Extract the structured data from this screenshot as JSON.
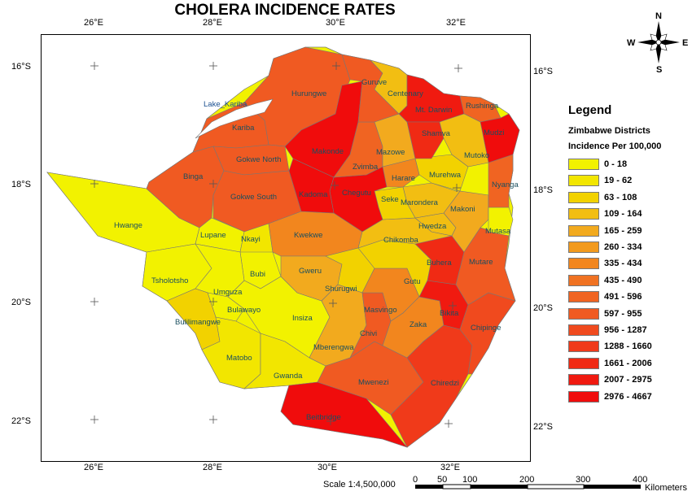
{
  "title": "CHOLERA INCIDENCE RATES",
  "compass": {
    "n": "N",
    "s": "S",
    "e": "E",
    "w": "W"
  },
  "axes": {
    "top": [
      "26°E",
      "28°E",
      "30°E",
      "32°E"
    ],
    "bottom": [
      "26°E",
      "28°E",
      "30°E",
      "32°E"
    ],
    "left": [
      "16°S",
      "18°S",
      "20°S",
      "22°S"
    ],
    "right": [
      "16°S",
      "18°S",
      "20°S",
      "22°S"
    ]
  },
  "legend": {
    "title": "Legend",
    "subtitle1": "Zimbabwe Districts",
    "subtitle2": "Incidence Per 100,000",
    "classes": [
      {
        "label": "0 - 18",
        "color": "#f2f200"
      },
      {
        "label": "19 - 62",
        "color": "#f2e600"
      },
      {
        "label": "63 - 108",
        "color": "#f2d200"
      },
      {
        "label": "109 - 164",
        "color": "#f2be12"
      },
      {
        "label": "165 - 259",
        "color": "#f2aa1e"
      },
      {
        "label": "260 - 334",
        "color": "#f29a1e"
      },
      {
        "label": "335 - 434",
        "color": "#f2861e"
      },
      {
        "label": "435 - 490",
        "color": "#f07222"
      },
      {
        "label": "491 - 596",
        "color": "#f06422"
      },
      {
        "label": "597 - 955",
        "color": "#f05a22"
      },
      {
        "label": "956 - 1287",
        "color": "#f04a1e"
      },
      {
        "label": "1288 - 1660",
        "color": "#f03a1a"
      },
      {
        "label": "1661 - 2006",
        "color": "#f02a14"
      },
      {
        "label": "2007 - 2975",
        "color": "#f01a10"
      },
      {
        "label": "2976 - 4667",
        "color": "#f00c0c"
      }
    ]
  },
  "lake": "Lake_Kariba",
  "districts": [
    {
      "name": "Hurungwe",
      "color": "#f05a22"
    },
    {
      "name": "Guruve",
      "color": "#f05a22"
    },
    {
      "name": "Centenary",
      "color": "#f2be12"
    },
    {
      "name": "Mt. Darwin",
      "color": "#f01a10"
    },
    {
      "name": "Rushinga",
      "color": "#f06422"
    },
    {
      "name": "Kariba",
      "color": "#f05a22"
    },
    {
      "name": "Makonde",
      "color": "#f00c0c"
    },
    {
      "name": "Mazowe",
      "color": "#f2aa1e"
    },
    {
      "name": "Shamva",
      "color": "#f02a14"
    },
    {
      "name": "Mudzi",
      "color": "#f00c0c"
    },
    {
      "name": "Gokwe North",
      "color": "#f05a22"
    },
    {
      "name": "Zvimba",
      "color": "#f06422"
    },
    {
      "name": "Mutoko",
      "color": "#f2be12"
    },
    {
      "name": "Binga",
      "color": "#f05a22"
    },
    {
      "name": "Harare",
      "color": "#f2861e"
    },
    {
      "name": "Murehwa",
      "color": "#f2d200"
    },
    {
      "name": "Kadoma",
      "color": "#f00c0c"
    },
    {
      "name": "Chegutu",
      "color": "#f00c0c"
    },
    {
      "name": "Seke",
      "color": "#f2d200"
    },
    {
      "name": "Marondera",
      "color": "#f2be12"
    },
    {
      "name": "Nyanga",
      "color": "#f06422"
    },
    {
      "name": "Gokwe South",
      "color": "#f05a22"
    },
    {
      "name": "Makoni",
      "color": "#f2aa1e"
    },
    {
      "name": "Hwange",
      "color": "#f2f200"
    },
    {
      "name": "Hwedza",
      "color": "#f2be12"
    },
    {
      "name": "Mutasa",
      "color": "#f2f200"
    },
    {
      "name": "Lupane",
      "color": "#f2f200"
    },
    {
      "name": "Nkayi",
      "color": "#f2e600"
    },
    {
      "name": "Kwekwe",
      "color": "#f2861e"
    },
    {
      "name": "Chikomba",
      "color": "#f2be12"
    },
    {
      "name": "Buhera",
      "color": "#f02a14"
    },
    {
      "name": "Mutare",
      "color": "#f05a22"
    },
    {
      "name": "Tsholotsho",
      "color": "#f2f200"
    },
    {
      "name": "Bubi",
      "color": "#f2f200"
    },
    {
      "name": "Gweru",
      "color": "#f2aa1e"
    },
    {
      "name": "Gutu",
      "color": "#f2d200"
    },
    {
      "name": "Umguza",
      "color": "#f2f200"
    },
    {
      "name": "Shurugwi",
      "color": "#f2d200"
    },
    {
      "name": "Bulawayo",
      "color": "#f2f200"
    },
    {
      "name": "Insiza",
      "color": "#f2f200"
    },
    {
      "name": "Masvingo",
      "color": "#f2861e"
    },
    {
      "name": "Bikita",
      "color": "#f01a10"
    },
    {
      "name": "Bulilimangwe",
      "color": "#f2d200"
    },
    {
      "name": "Zaka",
      "color": "#f2861e"
    },
    {
      "name": "Chivi",
      "color": "#f05a22"
    },
    {
      "name": "Chipinge",
      "color": "#f04a1e"
    },
    {
      "name": "Mberengwa",
      "color": "#f2aa1e"
    },
    {
      "name": "Matobo",
      "color": "#f2e600"
    },
    {
      "name": "Mwenezi",
      "color": "#f05a22"
    },
    {
      "name": "Chiredzi",
      "color": "#f03a1a"
    },
    {
      "name": "Gwanda",
      "color": "#f2e600"
    },
    {
      "name": "Beitbridge",
      "color": "#f00c0c"
    }
  ],
  "scale": {
    "label": "Scale 1:4,500,000",
    "ticks": [
      "0",
      "50",
      "100",
      "200",
      "300",
      "400"
    ],
    "unit": "Kilometers"
  }
}
